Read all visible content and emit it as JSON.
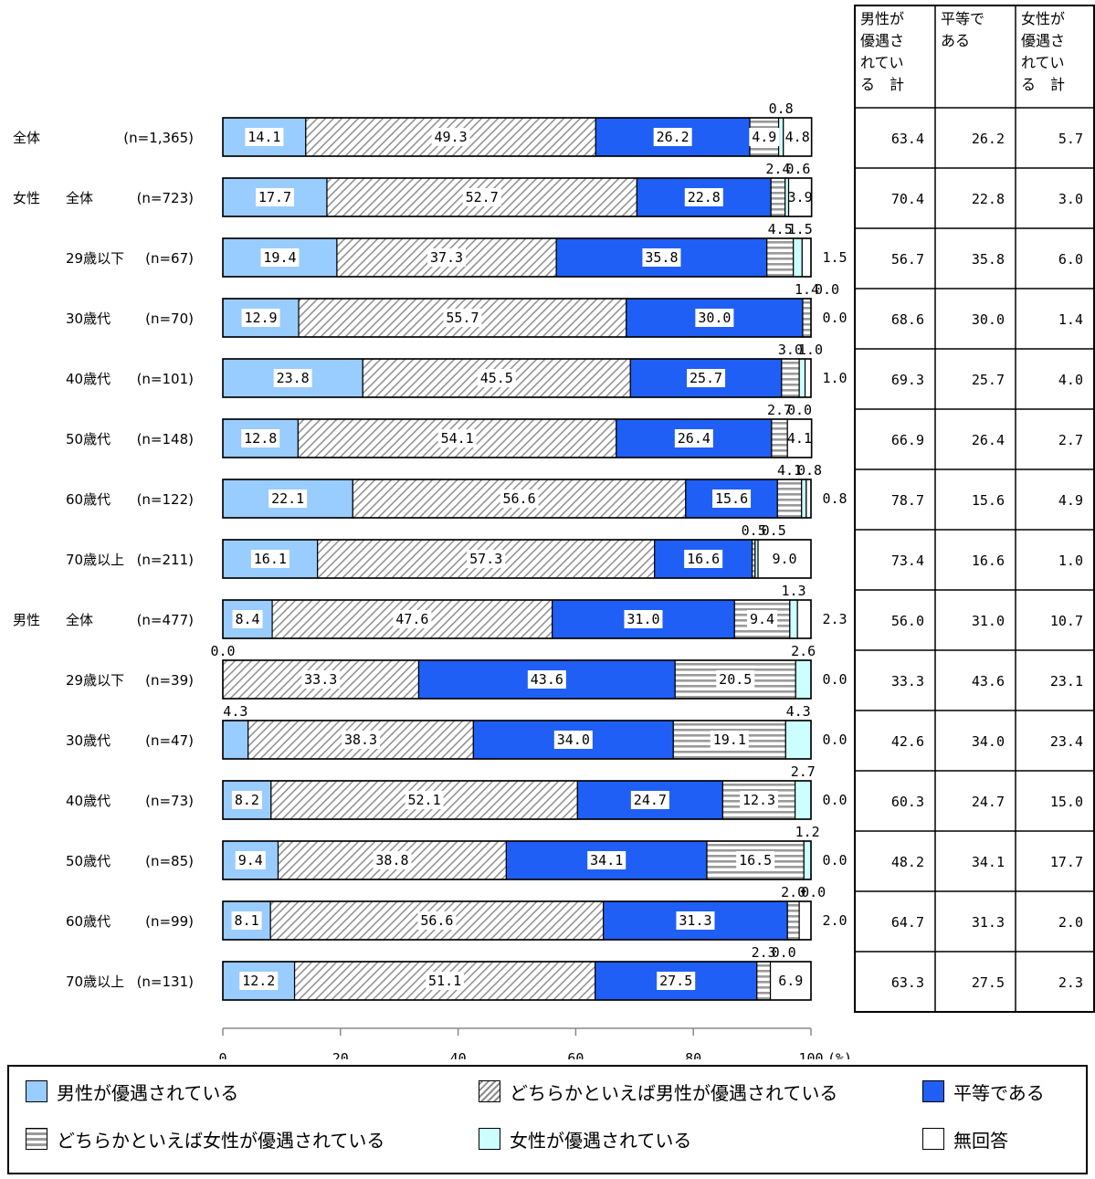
{
  "chart_data": {
    "type": "bar",
    "orientation": "horizontal",
    "stacked": true,
    "xlim": [
      0,
      100
    ],
    "x_ticks": [
      "0",
      "20",
      "40",
      "60",
      "80",
      "100"
    ],
    "unit": "(%)",
    "series": [
      {
        "name": "男性が優遇されている",
        "color": "#99ccff",
        "pattern": "solid"
      },
      {
        "name": "どちらかといえば男性が優遇されている",
        "color": "#ffffff",
        "pattern": "diagonal"
      },
      {
        "name": "平等である",
        "color": "#1f5ff5",
        "pattern": "solid"
      },
      {
        "name": "どちらかといえば女性が優遇されている",
        "color": "#ffffff",
        "pattern": "horizontal"
      },
      {
        "name": "女性が優遇されている",
        "color": "#ccffff",
        "pattern": "solid"
      },
      {
        "name": "無回答",
        "color": "#ffffff",
        "pattern": "solid"
      }
    ],
    "categories": [
      {
        "group": "全体",
        "label": "",
        "n": "(n=1,365)",
        "values": [
          14.1,
          49.3,
          26.2,
          4.9,
          0.8,
          4.8
        ],
        "labels": [
          "14.1",
          "49.3",
          "26.2",
          "4.9",
          "0.8",
          "4.8"
        ]
      },
      {
        "group": "女性",
        "label": "全体",
        "n": "(n=723)",
        "values": [
          17.7,
          52.7,
          22.8,
          2.4,
          0.6,
          3.9
        ],
        "labels": [
          "17.7",
          "52.7",
          "22.8",
          "2.4",
          "0.6",
          "3.9"
        ]
      },
      {
        "group": "",
        "label": "29歳以下",
        "n": "(n=67)",
        "values": [
          19.4,
          37.3,
          35.8,
          4.5,
          1.5,
          1.5
        ],
        "labels": [
          "19.4",
          "37.3",
          "35.8",
          "4.5",
          "1.5",
          "1.5"
        ]
      },
      {
        "group": "",
        "label": "30歳代",
        "n": "(n=70)",
        "values": [
          12.9,
          55.7,
          30.0,
          1.4,
          0.0,
          0.0
        ],
        "labels": [
          "12.9",
          "55.7",
          "30.0",
          "1.4",
          "0.0",
          "0.0"
        ]
      },
      {
        "group": "",
        "label": "40歳代",
        "n": "(n=101)",
        "values": [
          23.8,
          45.5,
          25.7,
          3.0,
          1.0,
          1.0
        ],
        "labels": [
          "23.8",
          "45.5",
          "25.7",
          "3.0",
          "1.0",
          "1.0"
        ]
      },
      {
        "group": "",
        "label": "50歳代",
        "n": "(n=148)",
        "values": [
          12.8,
          54.1,
          26.4,
          2.7,
          0.0,
          4.1
        ],
        "labels": [
          "12.8",
          "54.1",
          "26.4",
          "2.7",
          "0.0",
          "4.1"
        ]
      },
      {
        "group": "",
        "label": "60歳代",
        "n": "(n=122)",
        "values": [
          22.1,
          56.6,
          15.6,
          4.1,
          0.8,
          0.8
        ],
        "labels": [
          "22.1",
          "56.6",
          "15.6",
          "4.1",
          "0.8",
          "0.8"
        ]
      },
      {
        "group": "",
        "label": "70歳以上",
        "n": "(n=211)",
        "values": [
          16.1,
          57.3,
          16.6,
          0.5,
          0.5,
          9.0
        ],
        "labels": [
          "16.1",
          "57.3",
          "16.6",
          "0.5",
          "0.5",
          "9.0"
        ]
      },
      {
        "group": "男性",
        "label": "全体",
        "n": "(n=477)",
        "values": [
          8.4,
          47.6,
          31.0,
          9.4,
          1.3,
          2.3
        ],
        "labels": [
          "8.4",
          "47.6",
          "31.0",
          "9.4",
          "1.3",
          "2.3"
        ]
      },
      {
        "group": "",
        "label": "29歳以下",
        "n": "(n=39)",
        "values": [
          0.0,
          33.3,
          43.6,
          20.5,
          2.6,
          0.0
        ],
        "labels": [
          "0.0",
          "33.3",
          "43.6",
          "20.5",
          "2.6",
          "0.0"
        ]
      },
      {
        "group": "",
        "label": "30歳代",
        "n": "(n=47)",
        "values": [
          4.3,
          38.3,
          34.0,
          19.1,
          4.3,
          0.0
        ],
        "labels": [
          "4.3",
          "38.3",
          "34.0",
          "19.1",
          "4.3",
          "0.0"
        ]
      },
      {
        "group": "",
        "label": "40歳代",
        "n": "(n=73)",
        "values": [
          8.2,
          52.1,
          24.7,
          12.3,
          2.7,
          0.0
        ],
        "labels": [
          "8.2",
          "52.1",
          "24.7",
          "12.3",
          "2.7",
          "0.0"
        ]
      },
      {
        "group": "",
        "label": "50歳代",
        "n": "(n=85)",
        "values": [
          9.4,
          38.8,
          34.1,
          16.5,
          1.2,
          0.0
        ],
        "labels": [
          "9.4",
          "38.8",
          "34.1",
          "16.5",
          "1.2",
          "0.0"
        ]
      },
      {
        "group": "",
        "label": "60歳代",
        "n": "(n=99)",
        "values": [
          8.1,
          56.6,
          31.3,
          2.0,
          0.0,
          2.0
        ],
        "labels": [
          "8.1",
          "56.6",
          "31.3",
          "2.0",
          "0.0",
          "2.0"
        ]
      },
      {
        "group": "",
        "label": "70歳以上",
        "n": "(n=131)",
        "values": [
          12.2,
          51.1,
          27.5,
          2.3,
          0.0,
          6.9
        ],
        "labels": [
          "12.2",
          "51.1",
          "27.5",
          "2.3",
          "0.0",
          "6.9"
        ]
      }
    ],
    "summary_table": {
      "headers": [
        "男性が\n優遇さ\nれてい\nる　計",
        "平等で\nある",
        "女性が\n優遇さ\nれてい\nる　計"
      ],
      "rows": [
        [
          "63.4",
          "26.2",
          "5.7"
        ],
        [
          "70.4",
          "22.8",
          "3.0"
        ],
        [
          "56.7",
          "35.8",
          "6.0"
        ],
        [
          "68.6",
          "30.0",
          "1.4"
        ],
        [
          "69.3",
          "25.7",
          "4.0"
        ],
        [
          "66.9",
          "26.4",
          "2.7"
        ],
        [
          "78.7",
          "15.6",
          "4.9"
        ],
        [
          "73.4",
          "16.6",
          "1.0"
        ],
        [
          "56.0",
          "31.0",
          "10.7"
        ],
        [
          "33.3",
          "43.6",
          "23.1"
        ],
        [
          "42.6",
          "34.0",
          "23.4"
        ],
        [
          "60.3",
          "24.7",
          "15.0"
        ],
        [
          "48.2",
          "34.1",
          "17.7"
        ],
        [
          "64.7",
          "31.3",
          "2.0"
        ],
        [
          "63.3",
          "27.5",
          "2.3"
        ]
      ]
    }
  }
}
